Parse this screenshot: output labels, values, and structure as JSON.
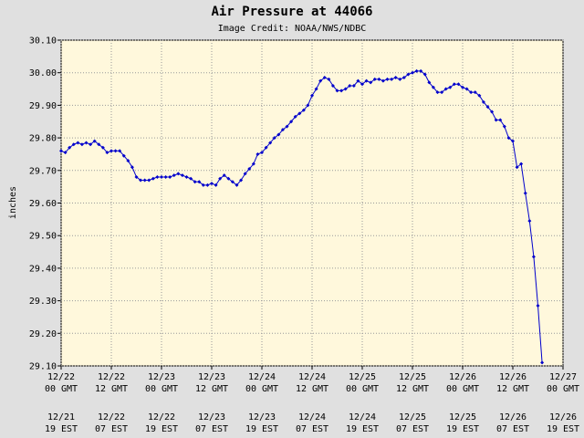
{
  "chart_data": {
    "type": "line",
    "title": "Air Pressure at 44066",
    "subtitle": "Image Credit: NOAA/NWS/NDBC",
    "ylabel": "inches",
    "grid": true,
    "color": "#0000cc",
    "ylim": [
      29.1,
      30.1
    ],
    "yticks": [
      {
        "value": 29.1,
        "label": "29.10"
      },
      {
        "value": 29.2,
        "label": "29.20"
      },
      {
        "value": 29.3,
        "label": "29.30"
      },
      {
        "value": 29.4,
        "label": "29.40"
      },
      {
        "value": 29.5,
        "label": "29.50"
      },
      {
        "value": 29.6,
        "label": "29.60"
      },
      {
        "value": 29.7,
        "label": "29.70"
      },
      {
        "value": 29.8,
        "label": "29.80"
      },
      {
        "value": 29.9,
        "label": "29.90"
      },
      {
        "value": 30.0,
        "label": "30.00"
      },
      {
        "value": 30.1,
        "label": "30.10"
      }
    ],
    "xlim": [
      0,
      120
    ],
    "xticks": [
      {
        "value": 0,
        "label": "12/22 00 GMT",
        "est_label": "12/21 19 EST"
      },
      {
        "value": 12,
        "label": "12/22 12 GMT",
        "est_label": "12/22 07 EST"
      },
      {
        "value": 24,
        "label": "12/23 00 GMT",
        "est_label": "12/22 19 EST"
      },
      {
        "value": 36,
        "label": "12/23 12 GMT",
        "est_label": "12/23 07 EST"
      },
      {
        "value": 48,
        "label": "12/24 00 GMT",
        "est_label": "12/23 19 EST"
      },
      {
        "value": 60,
        "label": "12/24 12 GMT",
        "est_label": "12/24 07 EST"
      },
      {
        "value": 72,
        "label": "12/25 00 GMT",
        "est_label": "12/24 19 EST"
      },
      {
        "value": 84,
        "label": "12/25 12 GMT",
        "est_label": "12/25 07 EST"
      },
      {
        "value": 96,
        "label": "12/26 00 GMT",
        "est_label": "12/25 19 EST"
      },
      {
        "value": 108,
        "label": "12/26 12 GMT",
        "est_label": "12/26 07 EST"
      },
      {
        "value": 120,
        "label": "12/27 00 GMT",
        "est_label": "12/26 19 EST"
      }
    ],
    "x": [
      0,
      1,
      2,
      3,
      4,
      5,
      6,
      7,
      8,
      9,
      10,
      11,
      12,
      13,
      14,
      15,
      16,
      17,
      18,
      19,
      20,
      21,
      22,
      23,
      24,
      25,
      26,
      27,
      28,
      29,
      30,
      31,
      32,
      33,
      34,
      35,
      36,
      37,
      38,
      39,
      40,
      41,
      42,
      43,
      44,
      45,
      46,
      47,
      48,
      49,
      50,
      51,
      52,
      53,
      54,
      55,
      56,
      57,
      58,
      59,
      60,
      61,
      62,
      63,
      64,
      65,
      66,
      67,
      68,
      69,
      70,
      71,
      72,
      73,
      74,
      75,
      76,
      77,
      78,
      79,
      80,
      81,
      82,
      83,
      84,
      85,
      86,
      87,
      88,
      89,
      90,
      91,
      92,
      93,
      94,
      95,
      96,
      97,
      98,
      99,
      100,
      101,
      102,
      103,
      104,
      105,
      106,
      107,
      108,
      109,
      110,
      111,
      112,
      113,
      114,
      115
    ],
    "values": [
      29.76,
      29.755,
      29.77,
      29.78,
      29.785,
      29.78,
      29.785,
      29.78,
      29.79,
      29.78,
      29.77,
      29.755,
      29.76,
      29.76,
      29.76,
      29.745,
      29.73,
      29.71,
      29.68,
      29.67,
      29.67,
      29.67,
      29.675,
      29.68,
      29.68,
      29.68,
      29.68,
      29.685,
      29.69,
      29.685,
      29.68,
      29.675,
      29.665,
      29.665,
      29.655,
      29.655,
      29.66,
      29.655,
      29.675,
      29.685,
      29.675,
      29.665,
      29.655,
      29.67,
      29.69,
      29.705,
      29.72,
      29.75,
      29.755,
      29.77,
      29.785,
      29.8,
      29.81,
      29.825,
      29.835,
      29.85,
      29.865,
      29.875,
      29.885,
      29.9,
      29.93,
      29.95,
      29.975,
      29.985,
      29.98,
      29.96,
      29.945,
      29.945,
      29.95,
      29.96,
      29.96,
      29.975,
      29.965,
      29.975,
      29.97,
      29.98,
      29.98,
      29.975,
      29.98,
      29.98,
      29.985,
      29.98,
      29.985,
      29.995,
      30.0,
      30.005,
      30.005,
      29.995,
      29.97,
      29.955,
      29.94,
      29.94,
      29.95,
      29.955,
      29.965,
      29.965,
      29.955,
      29.95,
      29.94,
      29.94,
      29.93,
      29.91,
      29.895,
      29.88,
      29.855,
      29.855,
      29.835,
      29.8,
      29.79,
      29.71,
      29.72,
      29.63,
      29.545,
      29.435,
      29.285,
      29.11
    ]
  }
}
